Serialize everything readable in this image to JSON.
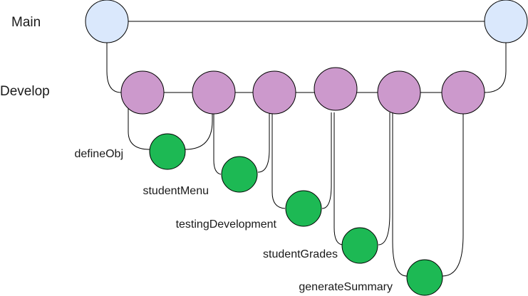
{
  "branches": {
    "main": {
      "label": "Main",
      "color": "#dae8fc"
    },
    "develop": {
      "label": "Develop",
      "color": "#cc99cc"
    }
  },
  "features": [
    {
      "id": "f1",
      "label": "defineObj"
    },
    {
      "id": "f2",
      "label": "studentMenu"
    },
    {
      "id": "f3",
      "label": "testingDevelopment"
    },
    {
      "id": "f4",
      "label": "studentGrades"
    },
    {
      "id": "f5",
      "label": "generateSummary"
    }
  ],
  "feature_color": "#1db954",
  "stroke_color": "#000000"
}
